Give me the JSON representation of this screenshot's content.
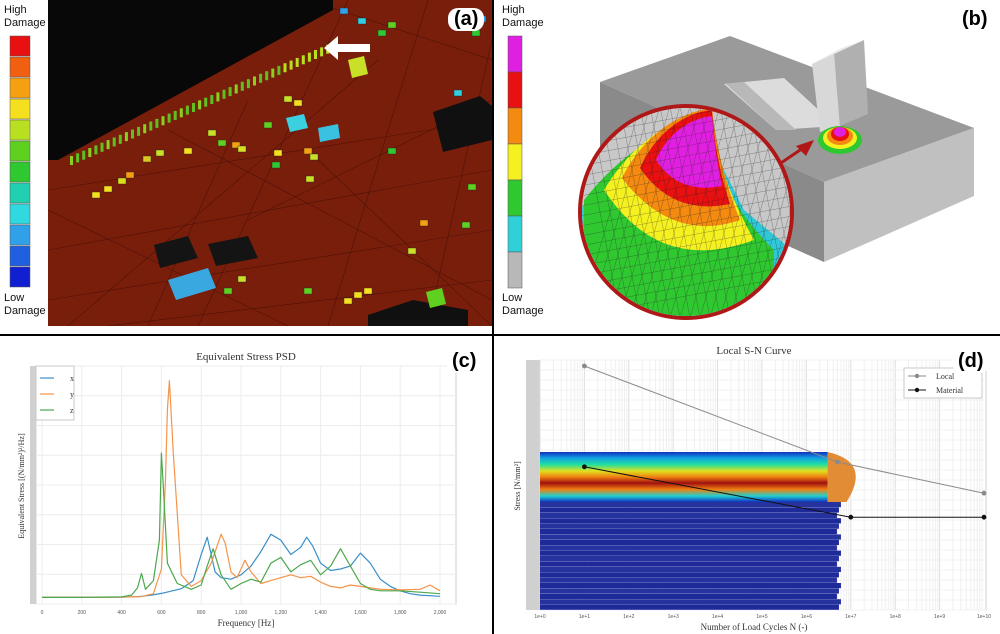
{
  "panel_a": {
    "letter": "(a)",
    "legend_top": [
      "High",
      "Damage"
    ],
    "legend_bottom": [
      "Low",
      "Damage"
    ],
    "scale_colors": [
      "#e81010",
      "#f06010",
      "#f5a010",
      "#f5e020",
      "#b8e020",
      "#60d020",
      "#30c830",
      "#20d0b0",
      "#30d8e0",
      "#30a0e8",
      "#2060e0",
      "#1020d0"
    ]
  },
  "panel_b": {
    "letter": "(b)",
    "legend_top": [
      "High",
      "Damage"
    ],
    "legend_bottom": [
      "Low",
      "Damage"
    ],
    "scale_colors": [
      "#e020e0",
      "#e81010",
      "#f58a10",
      "#f5f020",
      "#30c830",
      "#30d0d8",
      "#b8b8b8"
    ]
  },
  "panel_c": {
    "letter": "(c)",
    "chart_data": {
      "type": "line",
      "title": "Equivalent Stress PSD",
      "xlabel": "Frequency [Hz]",
      "ylabel": "Equivalent Stress [(N/mm²)²/Hz]",
      "xlim": [
        0,
        2000
      ],
      "x_ticks": [
        "0",
        "200",
        "400",
        "600",
        "800",
        "1,000",
        "1,200",
        "1,400",
        "1,600",
        "1,800",
        "2,000"
      ],
      "legend": "top-left",
      "series": [
        {
          "name": "x",
          "color": "#3a8fc8",
          "x": [
            0,
            200,
            400,
            450,
            500,
            550,
            600,
            640,
            700,
            760,
            800,
            830,
            850,
            870,
            900,
            950,
            1000,
            1050,
            1100,
            1150,
            1200,
            1250,
            1300,
            1330,
            1360,
            1400,
            1450,
            1500,
            1550,
            1600,
            1650,
            1700,
            1750,
            1800,
            1850,
            1900,
            2000
          ],
          "y": [
            0.2,
            0.2,
            0.3,
            0.4,
            0.6,
            1.0,
            1.6,
            2.2,
            3.2,
            6.0,
            15.0,
            21.0,
            15.0,
            9.0,
            7.0,
            6.5,
            8.0,
            11.0,
            16.0,
            22.0,
            20.0,
            15.0,
            17.5,
            21.0,
            18.0,
            12.0,
            9.5,
            10.0,
            11.0,
            15.5,
            12.0,
            6.5,
            4.0,
            2.5,
            1.5,
            1.0,
            0.6
          ]
        },
        {
          "name": "y",
          "color": "#f4944a",
          "x": [
            0,
            200,
            400,
            500,
            560,
            600,
            620,
            630,
            640,
            660,
            700,
            750,
            800,
            850,
            900,
            920,
            950,
            980,
            1000,
            1020,
            1050,
            1100,
            1150,
            1200,
            1250,
            1300,
            1350,
            1400,
            1450,
            1500,
            1550,
            1600,
            1650,
            1700,
            1800,
            1900,
            1950,
            2000
          ],
          "y": [
            0.2,
            0.2,
            0.3,
            0.5,
            1.5,
            10.0,
            40.0,
            65.0,
            75.0,
            50.0,
            8.0,
            4.0,
            6.0,
            12.0,
            22.0,
            19.0,
            9.0,
            7.0,
            10.0,
            13.0,
            9.0,
            5.0,
            6.0,
            7.0,
            8.0,
            7.0,
            7.5,
            5.5,
            4.0,
            3.5,
            4.5,
            4.0,
            3.5,
            3.0,
            2.8,
            3.0,
            4.5,
            2.5
          ]
        },
        {
          "name": "z",
          "color": "#4ca84c",
          "x": [
            0,
            200,
            400,
            450,
            480,
            500,
            520,
            560,
            590,
            600,
            610,
            630,
            680,
            750,
            800,
            830,
            860,
            900,
            950,
            1000,
            1050,
            1100,
            1150,
            1200,
            1250,
            1300,
            1350,
            1400,
            1450,
            1500,
            1550,
            1600,
            1650,
            1700,
            1800,
            1900,
            2000
          ],
          "y": [
            0.2,
            0.2,
            0.4,
            1.0,
            3.5,
            8.5,
            3.0,
            6.0,
            20.0,
            50.0,
            38.0,
            12.0,
            5.0,
            3.0,
            4.5,
            11.0,
            17.0,
            8.0,
            3.0,
            5.0,
            6.5,
            5.5,
            12.0,
            14.0,
            9.0,
            11.5,
            13.0,
            8.0,
            11.0,
            17.0,
            11.0,
            5.0,
            3.0,
            2.5,
            2.5,
            2.0,
            1.5
          ]
        }
      ]
    }
  },
  "panel_d": {
    "letter": "(d)",
    "chart_data": {
      "type": "line",
      "title": "Local S-N Curve",
      "xlabel": "Number of Load Cycles N (-)",
      "ylabel": "Stress [N/mm²]",
      "x_scale": "log",
      "xlim": [
        1,
        10000000000.0
      ],
      "x_ticks": [
        "1e+0",
        "1e+1",
        "1e+2",
        "1e+3",
        "1e+4",
        "1e+5",
        "1e+6",
        "1e+7",
        "1e+8",
        "1e+9",
        "1e+10"
      ],
      "legend": "top-right",
      "series": [
        {
          "name": "Local",
          "color": "#8a8a8a",
          "x": [
            10,
            5000000,
            10000000000
          ],
          "y": [
            1.0,
            0.6,
            0.47
          ]
        },
        {
          "name": "Material",
          "color": "#111111",
          "x": [
            10,
            10000000,
            10000000000
          ],
          "y": [
            0.58,
            0.37,
            0.37
          ]
        }
      ]
    }
  }
}
